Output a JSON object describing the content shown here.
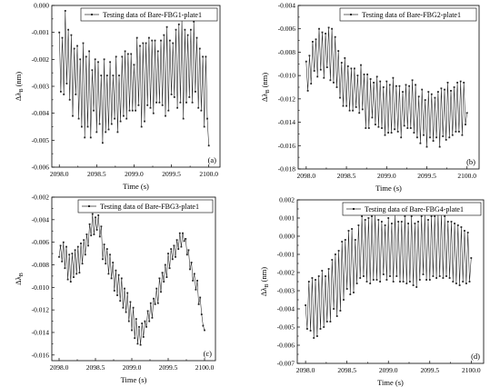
{
  "chart_data": [
    {
      "type": "line",
      "panel_label": "(a)",
      "xlabel": "Time (s)",
      "ylabel": "Δλ",
      "ylabel_sub": "B",
      "ylabel_unit": " (nm)",
      "xlim": [
        2097.9,
        2100.15
      ],
      "ylim": [
        -0.006,
        0.0
      ],
      "xticks": [
        2098.0,
        2098.5,
        2099.0,
        2099.5,
        2100.0
      ],
      "xtick_labels": [
        "2098.0",
        "2098.5",
        "2099.0",
        "2099.5",
        "2100.0"
      ],
      "yticks": [
        -0.006,
        -0.005,
        -0.004,
        -0.003,
        -0.002,
        -0.001,
        0.0
      ],
      "ytick_labels": [
        "-0.006",
        "-0.005",
        "-0.004",
        "-0.003",
        "-0.002",
        "-0.001",
        "0.000"
      ],
      "legend_position": "top-right",
      "series": [
        {
          "name": "Testing data of Bare-FBG1-plate1",
          "color": "#222222",
          "marker": "square",
          "x_start": 2098.0,
          "x_step": 0.02,
          "values": [
            -0.001,
            -0.0032,
            -0.0012,
            -0.0033,
            -0.0002,
            -0.0029,
            -0.0009,
            -0.0035,
            -0.0011,
            -0.0041,
            -0.0016,
            -0.0033,
            -0.0015,
            -0.0042,
            -0.002,
            -0.0045,
            -0.0014,
            -0.0049,
            -0.0019,
            -0.0045,
            -0.0017,
            -0.0049,
            -0.0024,
            -0.0039,
            -0.002,
            -0.0047,
            -0.0021,
            -0.0044,
            -0.0026,
            -0.0051,
            -0.002,
            -0.0047,
            -0.0026,
            -0.0046,
            -0.0021,
            -0.0044,
            -0.0026,
            -0.0042,
            -0.0019,
            -0.0047,
            -0.0026,
            -0.0043,
            -0.0019,
            -0.0041,
            -0.0017,
            -0.0042,
            -0.0018,
            -0.0039,
            -0.0018,
            -0.0039,
            -0.0022,
            -0.0039,
            -0.0012,
            -0.0037,
            -0.0015,
            -0.0045,
            -0.0014,
            -0.0043,
            -0.0014,
            -0.0037,
            -0.0012,
            -0.0038,
            -0.0013,
            -0.004,
            -0.0013,
            -0.0036,
            -0.0017,
            -0.0036,
            -0.0013,
            -0.0037,
            -0.0011,
            -0.0041,
            -0.0008,
            -0.0039,
            -0.0013,
            -0.0033,
            -0.0014,
            -0.0034,
            -0.0009,
            -0.0038,
            -0.0007,
            -0.0036,
            -0.0005,
            -0.0042,
            -0.0009,
            -0.0036,
            -0.0011,
            -0.0034,
            -0.0009,
            -0.0036,
            -0.0006,
            -0.0032,
            -0.0012,
            -0.0038,
            -0.0016,
            -0.0039,
            -0.0019,
            -0.0045,
            -0.0019,
            -0.0042,
            -0.0052
          ]
        }
      ]
    },
    {
      "type": "line",
      "panel_label": "(b)",
      "xlabel": "Time (s)",
      "ylabel": "Δλ",
      "ylabel_sub": "B",
      "ylabel_unit": " (nm)",
      "xlim": [
        2097.9,
        2100.15
      ],
      "ylim": [
        -0.018,
        -0.004
      ],
      "xticks": [
        2098.0,
        2098.5,
        2099.0,
        2099.5,
        2100.0
      ],
      "xtick_labels": [
        "2098.0",
        "2098.5",
        "2099.0",
        "2099.5",
        "2100.0"
      ],
      "yticks": [
        -0.018,
        -0.016,
        -0.014,
        -0.012,
        -0.01,
        -0.008,
        -0.006,
        -0.004
      ],
      "ytick_labels": [
        "-0.018",
        "-0.016",
        "-0.014",
        "-0.012",
        "-0.010",
        "-0.008",
        "-0.006",
        "-0.004"
      ],
      "legend_position": "top-right",
      "series": [
        {
          "name": "Testing data of Bare-FBG2-plate1",
          "color": "#222222",
          "marker": "square",
          "x_start": 2098.0,
          "x_step": 0.02,
          "values": [
            -0.0088,
            -0.0113,
            -0.0083,
            -0.0107,
            -0.0071,
            -0.0096,
            -0.0069,
            -0.0101,
            -0.006,
            -0.0095,
            -0.0063,
            -0.0102,
            -0.0064,
            -0.0093,
            -0.0059,
            -0.0104,
            -0.006,
            -0.0106,
            -0.0067,
            -0.011,
            -0.0079,
            -0.0119,
            -0.0089,
            -0.0126,
            -0.0085,
            -0.0126,
            -0.0092,
            -0.013,
            -0.0094,
            -0.013,
            -0.0094,
            -0.0127,
            -0.01,
            -0.0132,
            -0.0091,
            -0.0129,
            -0.0099,
            -0.0145,
            -0.0099,
            -0.0145,
            -0.0103,
            -0.0136,
            -0.0106,
            -0.0142,
            -0.0101,
            -0.0144,
            -0.0105,
            -0.0145,
            -0.011,
            -0.0151,
            -0.0105,
            -0.0149,
            -0.0108,
            -0.0149,
            -0.0102,
            -0.0146,
            -0.0109,
            -0.0148,
            -0.0109,
            -0.0153,
            -0.0114,
            -0.0143,
            -0.0108,
            -0.0145,
            -0.0109,
            -0.0145,
            -0.0104,
            -0.0149,
            -0.0108,
            -0.0153,
            -0.0118,
            -0.0158,
            -0.0112,
            -0.0151,
            -0.0121,
            -0.0161,
            -0.0114,
            -0.0153,
            -0.0116,
            -0.0156,
            -0.0119,
            -0.0153,
            -0.0114,
            -0.0161,
            -0.0111,
            -0.0152,
            -0.0112,
            -0.0155,
            -0.0106,
            -0.0153,
            -0.0113,
            -0.0151,
            -0.011,
            -0.0148,
            -0.0106,
            -0.0148,
            -0.0105,
            -0.0151,
            -0.0106,
            -0.0142,
            -0.0132
          ]
        }
      ]
    },
    {
      "type": "line",
      "panel_label": "(c)",
      "xlabel": "Time (s)",
      "ylabel": "Δλ",
      "ylabel_sub": "B",
      "ylabel_unit": "",
      "xlim": [
        2097.9,
        2100.15
      ],
      "ylim": [
        -0.0165,
        -0.002
      ],
      "xticks": [
        2098.0,
        2098.5,
        2099.0,
        2099.5,
        2100.0
      ],
      "xtick_labels": [
        "2098.0",
        "2098.5",
        "2099.0",
        "2099.5",
        "2100.0"
      ],
      "yticks": [
        -0.016,
        -0.014,
        -0.012,
        -0.01,
        -0.008,
        -0.006,
        -0.004,
        -0.002
      ],
      "ytick_labels": [
        "-0.016",
        "-0.014",
        "-0.012",
        "-0.010",
        "-0.008",
        "-0.006",
        "-0.004",
        "-0.002"
      ],
      "legend_position": "top-right",
      "series": [
        {
          "name": "Testing data of Bare-FBG3-plate1",
          "color": "#222222",
          "marker": "square",
          "x_start": 2098.0,
          "x_step": 0.02,
          "values": [
            -0.0073,
            -0.0063,
            -0.0077,
            -0.006,
            -0.0083,
            -0.0064,
            -0.0093,
            -0.0071,
            -0.0095,
            -0.007,
            -0.0091,
            -0.0067,
            -0.0088,
            -0.0064,
            -0.0087,
            -0.0061,
            -0.0079,
            -0.0058,
            -0.0071,
            -0.0053,
            -0.0063,
            -0.0044,
            -0.0054,
            -0.0035,
            -0.0053,
            -0.0038,
            -0.0049,
            -0.0036,
            -0.0055,
            -0.0046,
            -0.0075,
            -0.0062,
            -0.0079,
            -0.0066,
            -0.0088,
            -0.0071,
            -0.0092,
            -0.0078,
            -0.0103,
            -0.0085,
            -0.0107,
            -0.0089,
            -0.0112,
            -0.0092,
            -0.0118,
            -0.0101,
            -0.0122,
            -0.0105,
            -0.013,
            -0.0113,
            -0.0138,
            -0.0118,
            -0.0145,
            -0.0128,
            -0.015,
            -0.0135,
            -0.0151,
            -0.0132,
            -0.0144,
            -0.013,
            -0.0135,
            -0.0121,
            -0.013,
            -0.0114,
            -0.0127,
            -0.011,
            -0.0115,
            -0.0101,
            -0.0114,
            -0.0092,
            -0.0104,
            -0.0087,
            -0.0095,
            -0.008,
            -0.0091,
            -0.007,
            -0.0083,
            -0.0066,
            -0.0075,
            -0.0063,
            -0.0073,
            -0.0058,
            -0.0066,
            -0.0052,
            -0.0064,
            -0.0052,
            -0.0059,
            -0.0057,
            -0.0071,
            -0.0067,
            -0.0084,
            -0.0078,
            -0.0094,
            -0.0088,
            -0.0102,
            -0.0094,
            -0.0115,
            -0.0109,
            -0.0124,
            -0.0134,
            -0.0138
          ]
        }
      ]
    },
    {
      "type": "line",
      "panel_label": "(d)",
      "xlabel": "Time (s)",
      "ylabel": "Δλ",
      "ylabel_sub": "B",
      "ylabel_unit": " (nm)",
      "xlim": [
        2097.9,
        2100.15
      ],
      "ylim": [
        -0.007,
        0.002
      ],
      "xticks": [
        2098.0,
        2098.5,
        2099.0,
        2099.5,
        2100.0
      ],
      "xtick_labels": [
        "2098.0",
        "2098.5",
        "2099.0",
        "2099.5",
        "2100.0"
      ],
      "yticks": [
        -0.007,
        -0.006,
        -0.005,
        -0.004,
        -0.003,
        -0.002,
        -0.001,
        0.0,
        0.001,
        0.002
      ],
      "ytick_labels": [
        "-0.007",
        "-0.006",
        "-0.005",
        "-0.004",
        "-0.003",
        "-0.002",
        "-0.001",
        "0.000",
        "0.001",
        "0.002"
      ],
      "legend_position": "top-right",
      "series": [
        {
          "name": "Testing data of Bare-FBG4-plate1",
          "color": "#222222",
          "marker": "square",
          "x_start": 2098.0,
          "x_step": 0.02,
          "values": [
            -0.0038,
            -0.0051,
            -0.0025,
            -0.0052,
            -0.0023,
            -0.0056,
            -0.0024,
            -0.0055,
            -0.0022,
            -0.0051,
            -0.0019,
            -0.005,
            -0.0022,
            -0.0047,
            -0.0018,
            -0.0047,
            -0.0013,
            -0.004,
            -0.001,
            -0.0044,
            -0.0008,
            -0.0041,
            -0.0003,
            -0.0035,
            -0.0002,
            -0.0029,
            0.0003,
            -0.0032,
            0.0004,
            -0.0031,
            -0.0002,
            -0.0026,
            0.0006,
            -0.0023,
            0.0011,
            -0.0022,
            0.0009,
            -0.0025,
            0.001,
            -0.0026,
            0.0011,
            -0.0024,
            0.0012,
            -0.0024,
            0.0009,
            -0.0025,
            0.0008,
            -0.0021,
            0.0006,
            -0.0024,
            0.001,
            -0.0022,
            0.0007,
            -0.0025,
            0.0012,
            -0.0022,
            0.0008,
            -0.0025,
            0.0008,
            -0.0025,
            0.0011,
            -0.0026,
            0.0007,
            -0.0025,
            0.0011,
            -0.0027,
            0.0007,
            -0.0028,
            0.0008,
            -0.0024,
            0.0011,
            -0.0021,
            0.0012,
            -0.0024,
            0.0009,
            -0.0024,
            0.0011,
            -0.0022,
            0.0011,
            -0.0023,
            0.0012,
            -0.0022,
            0.0012,
            -0.0023,
            0.0011,
            -0.0022,
            0.0008,
            -0.0023,
            0.0008,
            -0.0025,
            0.0007,
            -0.0026,
            0.0006,
            -0.0027,
            0.0005,
            -0.0025,
            0.0003,
            -0.0026,
            0.0002,
            -0.0025,
            -0.0012
          ]
        }
      ]
    }
  ]
}
